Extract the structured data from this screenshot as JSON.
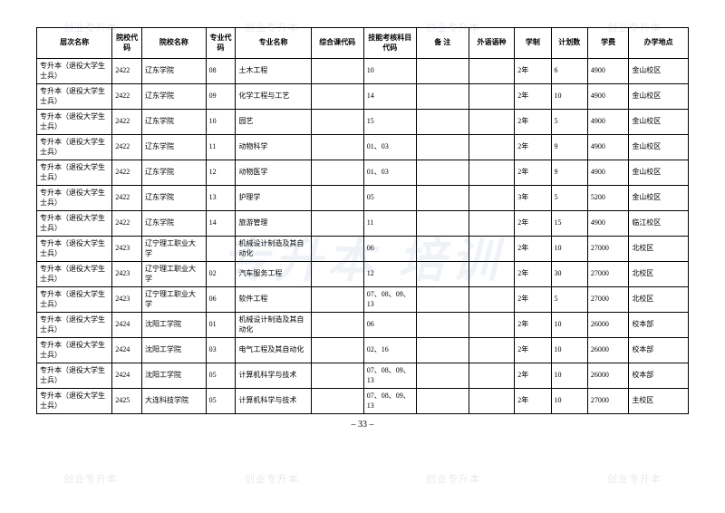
{
  "watermark_small": "创业专升本",
  "watermark_big": "专升本 培训",
  "page_number": "– 33 –",
  "headers": [
    "层次名称",
    "院校代码",
    "院校名称",
    "专业代码",
    "专业名称",
    "综合课代码",
    "技能考核科目代码",
    "备  注",
    "外语语种",
    "学制",
    "计划数",
    "学费",
    "办学地点"
  ],
  "col_classes": [
    "c-level",
    "c-scode",
    "c-school",
    "c-mcode",
    "c-major",
    "c-exam",
    "c-skill",
    "c-note",
    "c-lang",
    "c-years",
    "c-plan",
    "c-fee",
    "c-campus"
  ],
  "rows": [
    [
      "专升本（退役大学生士兵）",
      "2422",
      "辽东学院",
      "08",
      "土木工程",
      "",
      "10",
      "",
      "",
      "2年",
      "6",
      "4900",
      "金山校区"
    ],
    [
      "专升本（退役大学生士兵）",
      "2422",
      "辽东学院",
      "09",
      "化学工程与工艺",
      "",
      "14",
      "",
      "",
      "2年",
      "10",
      "4900",
      "金山校区"
    ],
    [
      "专升本（退役大学生士兵）",
      "2422",
      "辽东学院",
      "10",
      "园艺",
      "",
      "15",
      "",
      "",
      "2年",
      "5",
      "4900",
      "金山校区"
    ],
    [
      "专升本（退役大学生士兵）",
      "2422",
      "辽东学院",
      "11",
      "动物科学",
      "",
      "01、03",
      "",
      "",
      "2年",
      "9",
      "4900",
      "金山校区"
    ],
    [
      "专升本（退役大学生士兵）",
      "2422",
      "辽东学院",
      "12",
      "动物医学",
      "",
      "01、03",
      "",
      "",
      "2年",
      "9",
      "4900",
      "金山校区"
    ],
    [
      "专升本（退役大学生士兵）",
      "2422",
      "辽东学院",
      "13",
      "护理学",
      "",
      "05",
      "",
      "",
      "3年",
      "5",
      "5200",
      "金山校区"
    ],
    [
      "专升本（退役大学生士兵）",
      "2422",
      "辽东学院",
      "14",
      "旅游管理",
      "",
      "11",
      "",
      "",
      "2年",
      "15",
      "4900",
      "临江校区"
    ],
    [
      "专升本（退役大学生士兵）",
      "2423",
      "辽宁理工职业大学",
      "",
      "机械设计制造及其自动化",
      "",
      "06",
      "",
      "",
      "2年",
      "10",
      "27000",
      "北校区"
    ],
    [
      "专升本（退役大学生士兵）",
      "2423",
      "辽宁理工职业大学",
      "02",
      "汽车服务工程",
      "",
      "12",
      "",
      "",
      "2年",
      "30",
      "27000",
      "北校区"
    ],
    [
      "专升本（退役大学生士兵）",
      "2423",
      "辽宁理工职业大学",
      "06",
      "软件工程",
      "",
      "07、08、09、13",
      "",
      "",
      "2年",
      "5",
      "27000",
      "北校区"
    ],
    [
      "专升本（退役大学生士兵）",
      "2424",
      "沈阳工学院",
      "01",
      "机械设计制造及其自动化",
      "",
      "06",
      "",
      "",
      "2年",
      "10",
      "26000",
      "校本部"
    ],
    [
      "专升本（退役大学生士兵）",
      "2424",
      "沈阳工学院",
      "03",
      "电气工程及其自动化",
      "",
      "02、16",
      "",
      "",
      "2年",
      "10",
      "26000",
      "校本部"
    ],
    [
      "专升本（退役大学生士兵）",
      "2424",
      "沈阳工学院",
      "05",
      "计算机科学与技术",
      "",
      "07、08、09、13",
      "",
      "",
      "2年",
      "10",
      "26000",
      "校本部"
    ],
    [
      "专升本（退役大学生士兵）",
      "2425",
      "大连科技学院",
      "05",
      "计算机科学与技术",
      "",
      "07、08、09、13",
      "",
      "",
      "2年",
      "10",
      "27000",
      "主校区"
    ]
  ]
}
